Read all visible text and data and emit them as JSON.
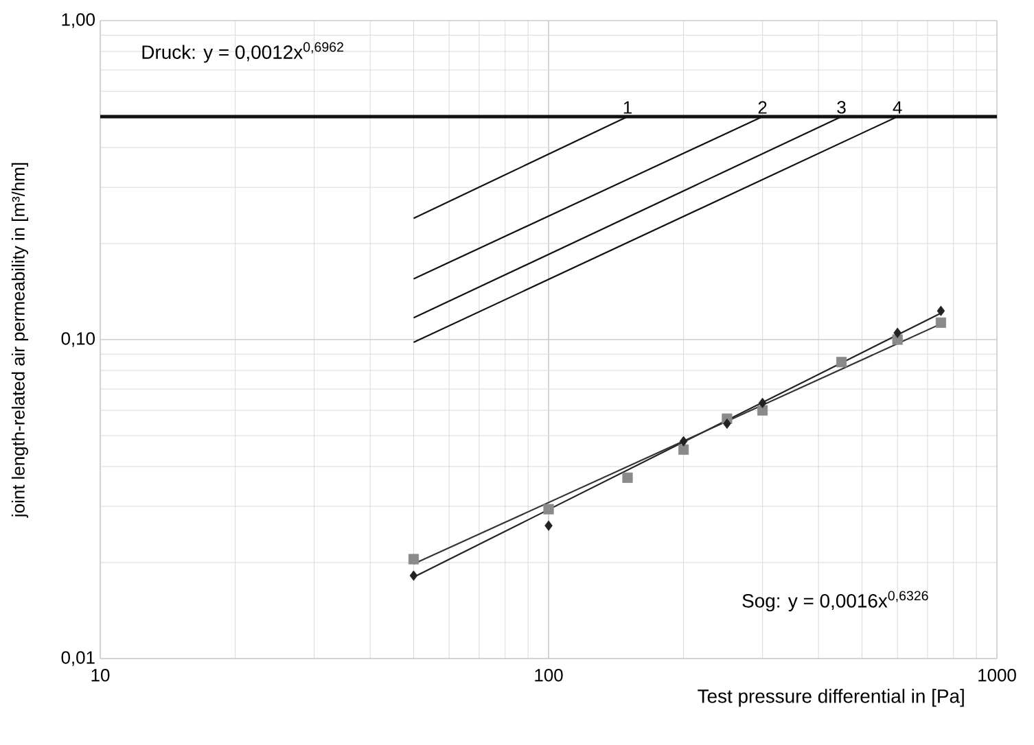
{
  "chart_data": {
    "type": "line",
    "xlabel": "Test pressure differential in [Pa]",
    "ylabel": "joint length-related air permeability in [m³/hm]",
    "log": "xy",
    "grid": true,
    "xlim": [
      10,
      1000
    ],
    "ylim": [
      0.01,
      1
    ],
    "xticks": [
      10,
      100,
      1000
    ],
    "yticks": [
      {
        "value": 0.01,
        "label": "0,01"
      },
      {
        "value": 0.1,
        "label": "0,10"
      },
      {
        "value": 1,
        "label": "1,00"
      }
    ],
    "ref_lines": [
      {
        "axis": "y",
        "value": 0.5,
        "color": "#111111"
      }
    ],
    "annotations": [
      "Druck: y = 0,0012x$^{0,6962}$",
      "Sog: y = 0,0016x$^{0,6326}$"
    ],
    "series": [
      {
        "name": "1",
        "color": "#111111",
        "marker": "none",
        "line_style": "solid",
        "x": [
          50,
          150
        ],
        "values": [
          0.24,
          0.5
        ]
      },
      {
        "name": "2",
        "color": "#111111",
        "marker": "none",
        "line_style": "solid",
        "x": [
          50,
          300
        ],
        "values": [
          0.155,
          0.5
        ]
      },
      {
        "name": "3",
        "color": "#111111",
        "marker": "none",
        "line_style": "solid",
        "x": [
          50,
          450
        ],
        "values": [
          0.117,
          0.5
        ]
      },
      {
        "name": "4",
        "color": "#111111",
        "marker": "none",
        "line_style": "solid",
        "x": [
          50,
          600
        ],
        "values": [
          0.098,
          0.5
        ]
      },
      {
        "color": "#222222",
        "marker": "none",
        "line_style": "solid",
        "x": [
          50,
          750
        ],
        "values": [
          0.018,
          0.121
        ]
      },
      {
        "color": "#333333",
        "marker": "none",
        "line_style": "solid",
        "x": [
          50,
          750
        ],
        "values": [
          0.0198,
          0.112
        ]
      },
      {
        "type": "scatter",
        "color": "#8a8a8a",
        "marker": "square",
        "x": [
          50,
          100,
          150,
          200,
          250,
          300,
          450,
          600,
          750
        ],
        "values": [
          0.0205,
          0.0294,
          0.0369,
          0.0452,
          0.0565,
          0.06,
          0.085,
          0.1,
          0.113
        ]
      },
      {
        "type": "scatter",
        "color": "#222222",
        "marker": "diamond",
        "x": [
          50,
          100,
          200,
          250,
          300,
          600,
          750
        ],
        "values": [
          0.0182,
          0.0261,
          0.048,
          0.0545,
          0.0633,
          0.105,
          0.123
        ]
      }
    ]
  }
}
